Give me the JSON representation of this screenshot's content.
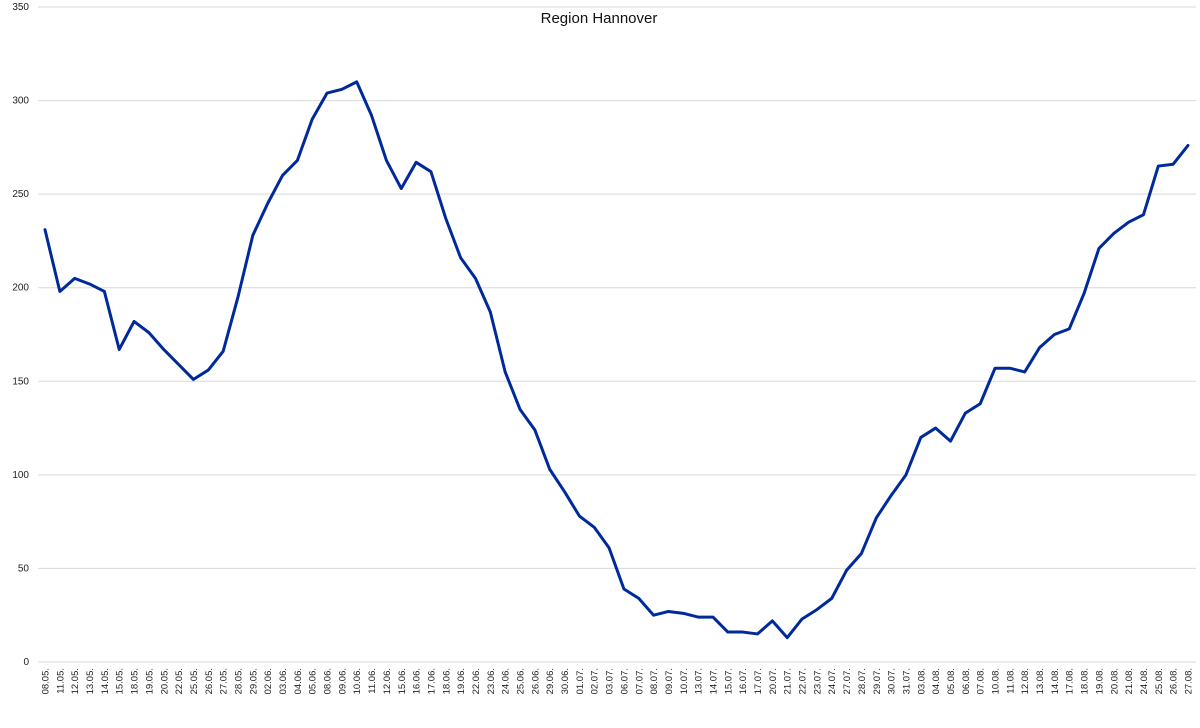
{
  "chart_data": {
    "type": "line",
    "title": "Region Hannover",
    "xlabel": "",
    "ylabel": "",
    "ylim": [
      0,
      350
    ],
    "yticks": [
      0,
      50,
      100,
      150,
      200,
      250,
      300,
      350
    ],
    "grid": true,
    "legend": "none",
    "colors": {
      "line": "#002a9c",
      "grid": "#d9d9d9"
    },
    "x": [
      "08.05.",
      "11.05.",
      "12.05.",
      "13.05.",
      "14.05.",
      "15.05.",
      "18.05.",
      "19.05.",
      "20.05.",
      "22.05.",
      "25.05.",
      "26.05.",
      "27.05.",
      "28.05.",
      "29.05.",
      "02.06.",
      "03.06.",
      "04.06.",
      "05.06.",
      "08.06.",
      "09.06.",
      "10.06.",
      "11.06.",
      "12.06.",
      "15.06.",
      "16.06.",
      "17.06.",
      "18.06.",
      "19.06.",
      "22.06.",
      "23.06.",
      "24.06.",
      "25.06.",
      "26.06.",
      "29.06.",
      "30.06.",
      "01.07.",
      "02.07.",
      "03.07.",
      "06.07.",
      "07.07.",
      "08.07.",
      "09.07.",
      "10.07.",
      "13.07.",
      "14.07.",
      "15.07.",
      "16.07.",
      "17.07.",
      "20.07.",
      "21.07.",
      "22.07.",
      "23.07.",
      "24.07.",
      "27.07.",
      "28.07.",
      "29.07.",
      "30.07.",
      "31.07.",
      "03.08.",
      "04.08.",
      "05.08.",
      "06.08.",
      "07.08.",
      "10.08.",
      "11.08.",
      "12.08.",
      "13.08.",
      "14.08.",
      "17.08.",
      "18.08.",
      "19.08.",
      "20.08.",
      "21.08.",
      "24.08.",
      "25.08.",
      "26.08.",
      "27.08."
    ],
    "series": [
      {
        "values": [
          231,
          198,
          205,
          202,
          198,
          167,
          182,
          176,
          167,
          159,
          151,
          156,
          166,
          195,
          228,
          245,
          260,
          268,
          290,
          304,
          306,
          310,
          292,
          268,
          253,
          267,
          262,
          237,
          216,
          205,
          187,
          155,
          135,
          124,
          103,
          91,
          78,
          72,
          61,
          39,
          34,
          25,
          27,
          26,
          24,
          24,
          16,
          16,
          15,
          22,
          13,
          23,
          28,
          34,
          49,
          58,
          77,
          89,
          100,
          120,
          125,
          118,
          133,
          138,
          157,
          157,
          155,
          168,
          175,
          178,
          197,
          221,
          229,
          235,
          239,
          265,
          266,
          276
        ]
      }
    ]
  }
}
